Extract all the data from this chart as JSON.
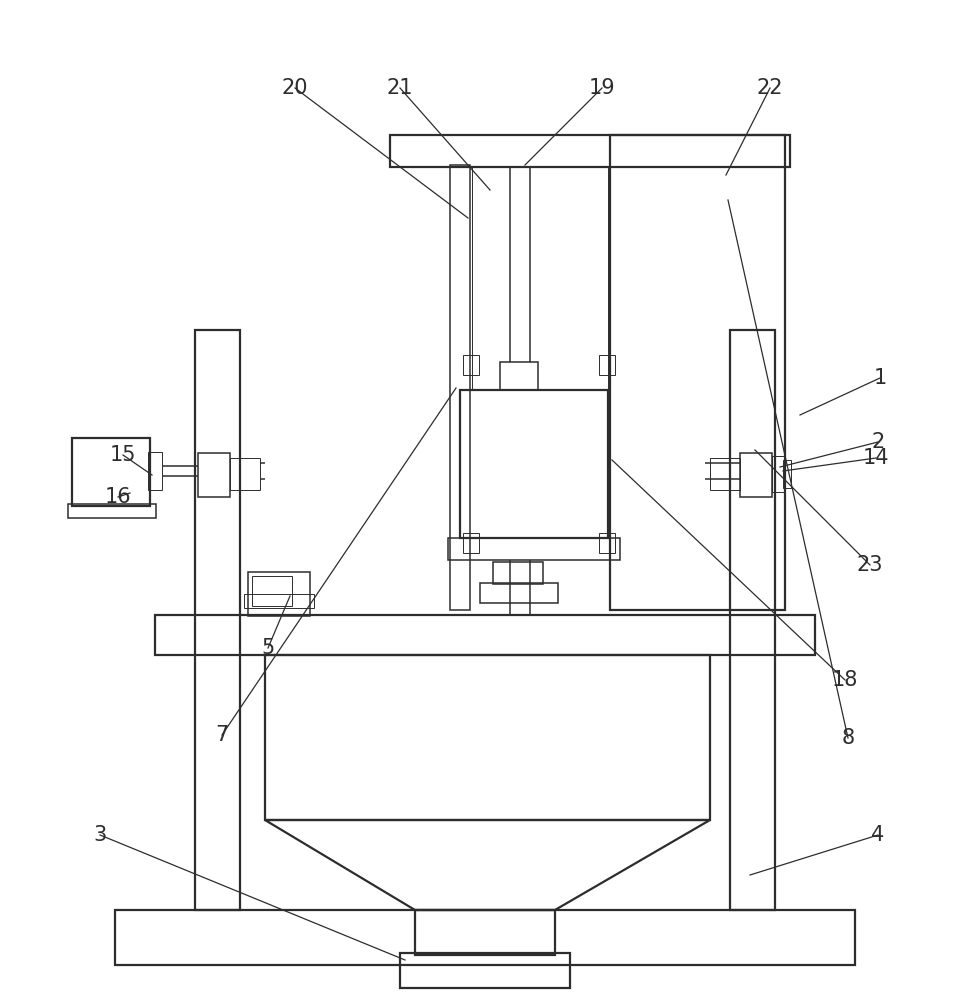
{
  "bg_color": "#ffffff",
  "line_color": "#2d2d2d",
  "lw_main": 1.6,
  "lw_med": 1.1,
  "lw_thin": 0.7,
  "fig_width": 9.7,
  "fig_height": 10.0,
  "label_fontsize": 15
}
